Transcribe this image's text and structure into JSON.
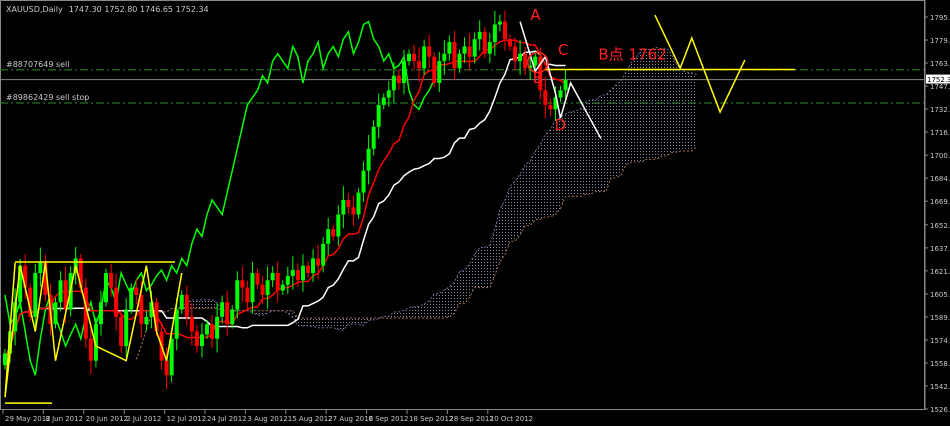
{
  "header": {
    "title": "XAUUSD,Daily",
    "ohlc": "1747.30 1752.80 1746.65 1752.34"
  },
  "orders": [
    {
      "label": "#88707649 sell",
      "price": 1759.0
    },
    {
      "label": "#89862429 sell stop",
      "price": 1736.3
    }
  ],
  "colors": {
    "bull": "#00ff00",
    "bear": "#ff0000",
    "tenkan": "#ff0000",
    "kijun": "#ffffff",
    "chikou": "#00ff00",
    "annotation": "#ffff00",
    "order_line": "#2e8b2e",
    "text_annotation": "#ff2020"
  },
  "chart_data": {
    "type": "candlestick",
    "symbol": "XAUUSD",
    "timeframe": "Daily",
    "current_price": 1752.34,
    "ylim": [
      1526.95,
      1795.15
    ],
    "y_ticks": [
      "1795.15",
      "1779.40",
      "1763.65",
      "1747.90",
      "1732.15",
      "1716.40",
      "1700.65",
      "1684.90",
      "1669.15",
      "1652.95",
      "1637.20",
      "1621.45",
      "1605.70",
      "1589.95",
      "1574.20",
      "1558.45",
      "1542.70",
      "1526.95"
    ],
    "x_ticks": [
      {
        "bar": 0,
        "label": "29 May 2012"
      },
      {
        "bar": 8,
        "label": "8 Jun 2012"
      },
      {
        "bar": 16,
        "label": "20 Jun 2012"
      },
      {
        "bar": 24,
        "label": "2 Jul 2012"
      },
      {
        "bar": 32,
        "label": "12 Jul 2012"
      },
      {
        "bar": 40,
        "label": "24 Jul 2012"
      },
      {
        "bar": 48,
        "label": "3 Aug 2012"
      },
      {
        "bar": 56,
        "label": "15 Aug 2012"
      },
      {
        "bar": 64,
        "label": "27 Aug 2012"
      },
      {
        "bar": 72,
        "label": "6 Sep 2012"
      },
      {
        "bar": 80,
        "label": "18 Sep 2012"
      },
      {
        "bar": 88,
        "label": "28 Sep 2012"
      },
      {
        "bar": 96,
        "label": "10 Oct 2012"
      }
    ],
    "closes": [
      1565,
      1580,
      1600,
      1625,
      1610,
      1590,
      1620,
      1628,
      1605,
      1585,
      1600,
      1615,
      1595,
      1620,
      1630,
      1610,
      1575,
      1560,
      1585,
      1600,
      1620,
      1610,
      1590,
      1570,
      1595,
      1610,
      1605,
      1585,
      1590,
      1600,
      1580,
      1560,
      1550,
      1575,
      1595,
      1605,
      1590,
      1580,
      1570,
      1578,
      1585,
      1575,
      1590,
      1600,
      1585,
      1595,
      1615,
      1610,
      1600,
      1620,
      1612,
      1605,
      1615,
      1620,
      1608,
      1612,
      1618,
      1622,
      1615,
      1625,
      1620,
      1630,
      1625,
      1640,
      1650,
      1645,
      1660,
      1670,
      1665,
      1660,
      1675,
      1690,
      1705,
      1720,
      1735,
      1740,
      1745,
      1755,
      1750,
      1765,
      1770,
      1765,
      1760,
      1775,
      1768,
      1750,
      1765,
      1770,
      1778,
      1760,
      1770,
      1775,
      1768,
      1780,
      1785,
      1770,
      1778,
      1790,
      1792,
      1780,
      1775,
      1765,
      1770,
      1760,
      1762,
      1768,
      1745,
      1735,
      1732,
      1740,
      1745,
      1752.34
    ],
    "indicators": [
      "Ichimoku Tenkan-sen",
      "Ichimoku Kijun-sen",
      "Ichimoku Chikou",
      "Ichimoku Cloud"
    ],
    "annotations": {
      "box_top_price": 1627.5,
      "box_bottom_price": 1531,
      "left_zigzag": [
        [
          2,
          1627
        ],
        [
          0,
          1535
        ],
        [
          3,
          1625
        ],
        [
          6,
          1580
        ],
        [
          8,
          1627
        ],
        [
          10,
          1560
        ],
        [
          14,
          1625
        ],
        [
          18,
          1570
        ],
        [
          24,
          1560
        ],
        [
          28,
          1625
        ],
        [
          30,
          1580
        ],
        [
          32,
          1560
        ],
        [
          35,
          1620
        ]
      ],
      "b_level_price": 1762,
      "future_zigzag": [
        [
          128.7,
          1796.5
        ],
        [
          133.7,
          1760.2
        ],
        [
          136,
          1780.8
        ],
        [
          141.6,
          1730.1
        ],
        [
          146.5,
          1765.7
        ]
      ],
      "projection_white": [
        [
          102,
          1792
        ],
        [
          105,
          1758
        ],
        [
          107,
          1768
        ],
        [
          109,
          1743
        ],
        [
          110,
          1726
        ],
        [
          112,
          1750
        ],
        [
          118,
          1712
        ]
      ],
      "labels": [
        {
          "text": "A",
          "bar": 104,
          "price": 1793
        },
        {
          "text": "B",
          "bar": 104.5,
          "price": 1750
        },
        {
          "text": "C",
          "bar": 109.5,
          "price": 1769
        },
        {
          "text": "D",
          "bar": 108.8,
          "price": 1718
        },
        {
          "text": "B点 1762",
          "bar": 117.5,
          "price": 1766
        }
      ]
    }
  }
}
